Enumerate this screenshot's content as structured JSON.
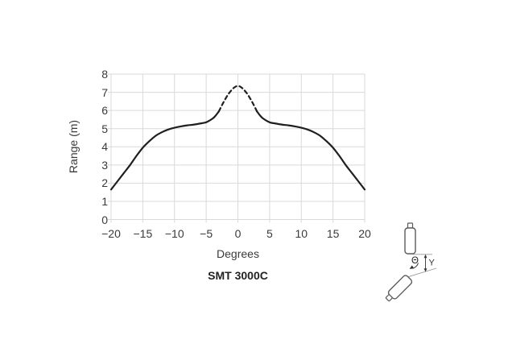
{
  "chart_data": {
    "type": "line",
    "title": "SMT 3000C",
    "xlabel": "Degrees",
    "ylabel": "Range (m)",
    "xlim": [
      -20,
      20
    ],
    "ylim": [
      0,
      8
    ],
    "x_ticks": [
      -20,
      -15,
      -10,
      -5,
      0,
      5,
      10,
      15,
      20
    ],
    "y_ticks": [
      0,
      1,
      2,
      3,
      4,
      5,
      6,
      7,
      8
    ],
    "grid": true,
    "legend": "none",
    "series": [
      {
        "name": "beam-pattern",
        "line_color": "#1f1f1f",
        "dashed_between_degrees": [
          -3,
          3
        ],
        "points": [
          [
            -20,
            1.65
          ],
          [
            -19,
            2.1
          ],
          [
            -18,
            2.55
          ],
          [
            -17,
            3.0
          ],
          [
            -16,
            3.5
          ],
          [
            -15,
            3.95
          ],
          [
            -14,
            4.3
          ],
          [
            -13,
            4.6
          ],
          [
            -12,
            4.8
          ],
          [
            -11,
            4.95
          ],
          [
            -10,
            5.05
          ],
          [
            -9,
            5.12
          ],
          [
            -8,
            5.18
          ],
          [
            -7,
            5.22
          ],
          [
            -6,
            5.28
          ],
          [
            -5,
            5.35
          ],
          [
            -4,
            5.55
          ],
          [
            -3.5,
            5.72
          ],
          [
            -3,
            5.95
          ],
          [
            -2.5,
            6.3
          ],
          [
            -2,
            6.62
          ],
          [
            -1.5,
            6.9
          ],
          [
            -1,
            7.12
          ],
          [
            -0.5,
            7.28
          ],
          [
            0,
            7.35
          ],
          [
            0.5,
            7.28
          ],
          [
            1,
            7.12
          ],
          [
            1.5,
            6.9
          ],
          [
            2,
            6.62
          ],
          [
            2.5,
            6.3
          ],
          [
            3,
            5.95
          ],
          [
            3.5,
            5.72
          ],
          [
            4,
            5.55
          ],
          [
            5,
            5.35
          ],
          [
            6,
            5.28
          ],
          [
            7,
            5.22
          ],
          [
            8,
            5.18
          ],
          [
            9,
            5.12
          ],
          [
            10,
            5.05
          ],
          [
            11,
            4.95
          ],
          [
            12,
            4.8
          ],
          [
            13,
            4.6
          ],
          [
            14,
            4.3
          ],
          [
            15,
            3.95
          ],
          [
            16,
            3.5
          ],
          [
            17,
            3.0
          ],
          [
            18,
            2.55
          ],
          [
            19,
            2.1
          ],
          [
            20,
            1.65
          ]
        ]
      }
    ]
  },
  "diagram": {
    "theta_label": "Θ",
    "y_label": "Y"
  },
  "colors": {
    "curve": "#1f1f1f",
    "grid": "#d9d9d9",
    "text": "#3a3a3a",
    "sensor_outline": "#5a5a5a",
    "reference_line": "#9a9a9a",
    "dimension_line": "#333333"
  }
}
